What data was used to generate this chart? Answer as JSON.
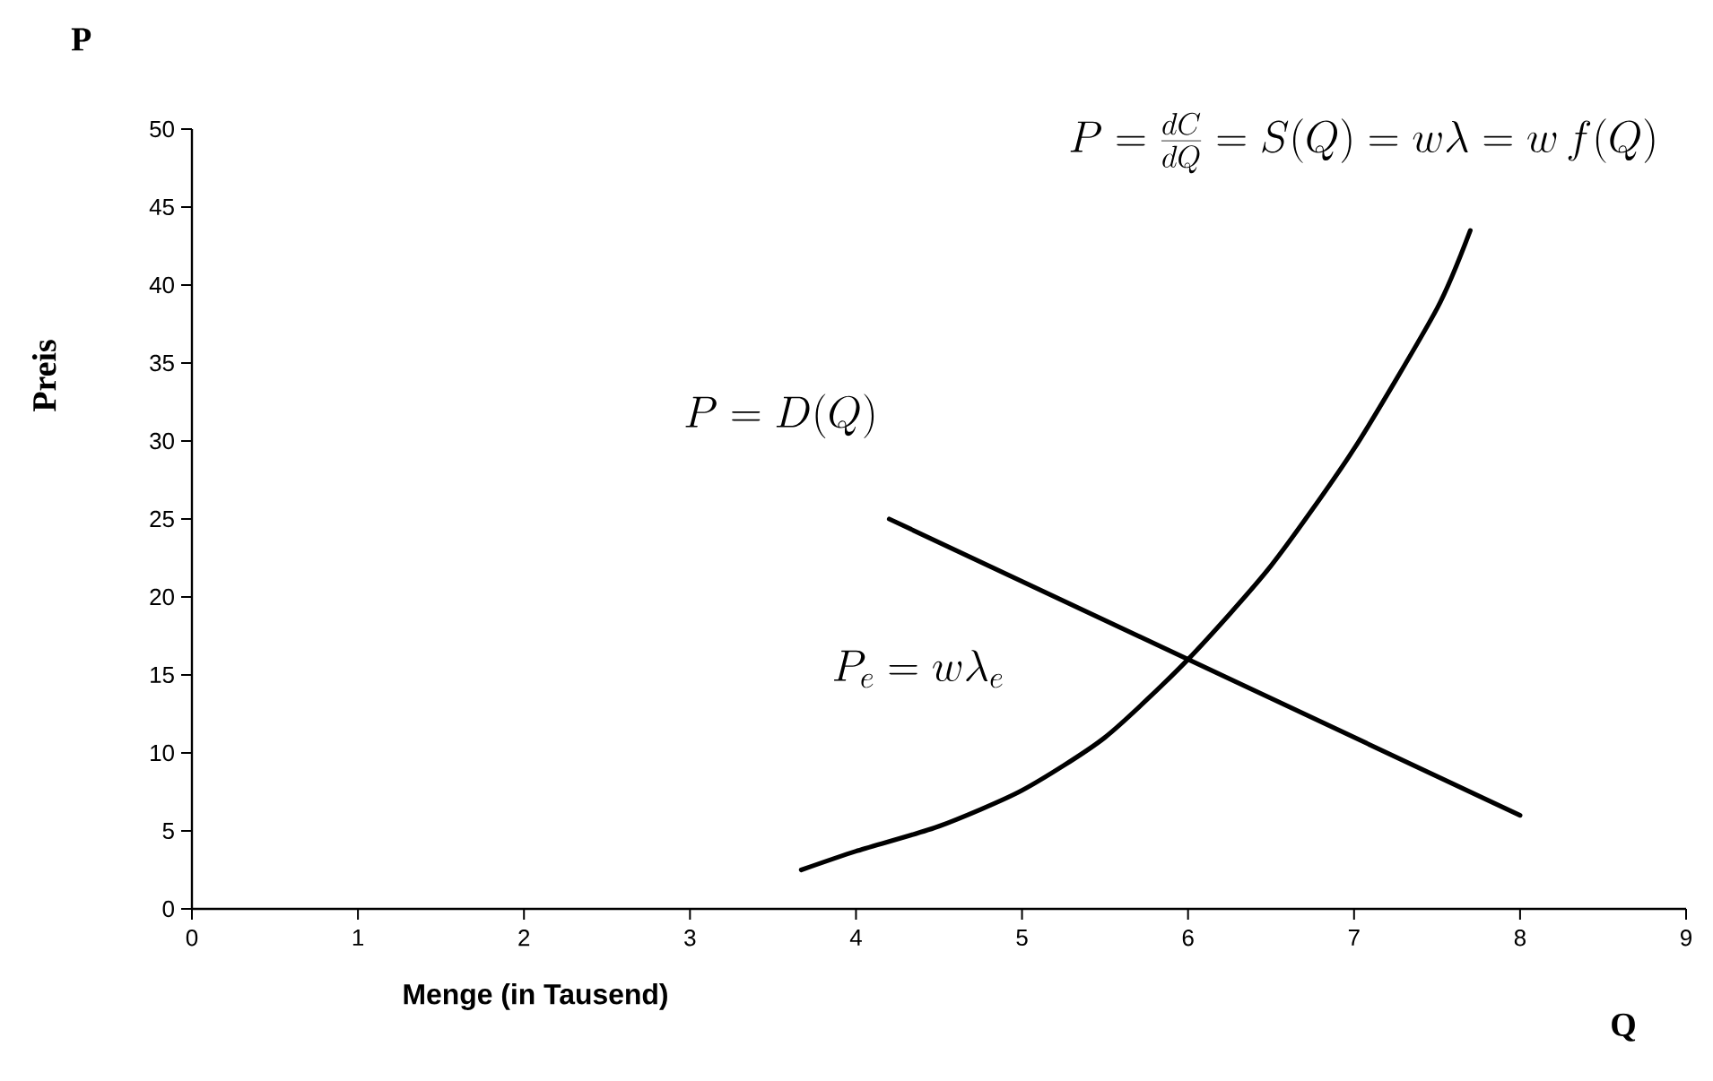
{
  "chart_data": {
    "type": "line",
    "xlabel": "Menge (in Tausend)",
    "ylabel": "Preis",
    "xlim": [
      0,
      9
    ],
    "ylim": [
      0,
      50
    ],
    "xticks": [
      0,
      1,
      2,
      3,
      4,
      5,
      6,
      7,
      8,
      9
    ],
    "yticks": [
      0,
      5,
      10,
      15,
      20,
      25,
      30,
      35,
      40,
      45,
      50
    ],
    "grid": false,
    "marker": "none",
    "line_style": "solid",
    "series": [
      {
        "color": "#000000",
        "x": [
          3.67,
          4.0,
          4.5,
          5.0,
          5.5,
          6.0,
          6.5,
          7.0,
          7.5,
          7.7
        ],
        "values": [
          2.5,
          3.7,
          5.3,
          7.6,
          11,
          16,
          22,
          29.5,
          38.5,
          43.5
        ]
      },
      {
        "color": "#000000",
        "x": [
          4.2,
          8.0
        ],
        "values": [
          25,
          6
        ]
      }
    ],
    "annotations": [
      "P=\\frac{dC}{dQ}=S(Q)=w\\lambda=w\\,f(Q)",
      "P=D(Q)",
      "P_e=w\\lambda_e",
      "P",
      "Q"
    ]
  }
}
